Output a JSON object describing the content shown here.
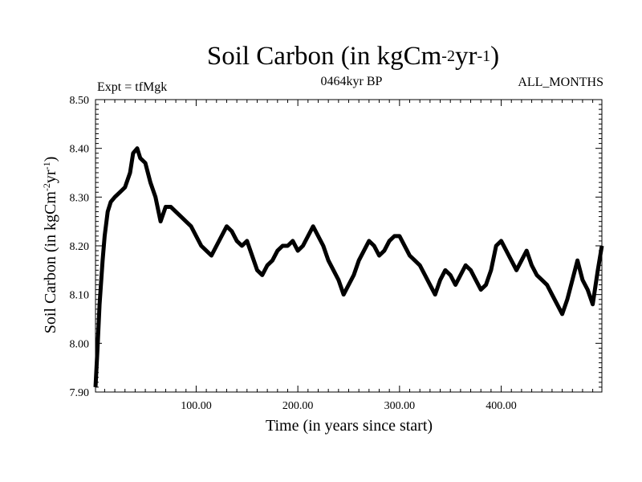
{
  "chart_data": {
    "type": "line",
    "title": "Soil Carbon (in kgCm",
    "title_sup1": "-2",
    "title_mid": "yr",
    "title_sup2": "-1",
    "title_end": ")",
    "subtitle_left": "Expt = tfMgk",
    "subtitle_center": "0464kyr BP",
    "subtitle_right": "ALL_MONTHS",
    "xlabel": "Time (in years since start)",
    "ylabel": "Soil Carbon (in kgCm",
    "ylabel_sup1": "-2",
    "ylabel_mid": "yr",
    "ylabel_sup2": "-1",
    "ylabel_end": ")",
    "xlim": [
      1,
      499
    ],
    "ylim": [
      7.9,
      8.5
    ],
    "xticks": [
      100,
      200,
      300,
      400
    ],
    "xtick_labels": [
      "100.00",
      "200.00",
      "300.00",
      "400.00"
    ],
    "yticks": [
      7.9,
      8.0,
      8.1,
      8.2,
      8.3,
      8.4,
      8.5
    ],
    "ytick_labels": [
      "7.90",
      "8.00",
      "8.10",
      "8.20",
      "8.30",
      "8.40",
      "8.50"
    ],
    "grid": false,
    "line_color": "#000000",
    "series": [
      {
        "x": [
          1,
          3,
          5,
          8,
          10,
          13,
          16,
          20,
          25,
          30,
          35,
          38,
          42,
          45,
          50,
          55,
          60,
          65,
          70,
          75,
          80,
          85,
          90,
          95,
          100,
          105,
          110,
          115,
          120,
          125,
          130,
          135,
          140,
          145,
          150,
          155,
          160,
          165,
          170,
          175,
          180,
          185,
          190,
          195,
          200,
          205,
          210,
          215,
          220,
          225,
          230,
          235,
          240,
          245,
          250,
          255,
          260,
          265,
          270,
          275,
          280,
          285,
          290,
          295,
          300,
          305,
          310,
          315,
          320,
          325,
          330,
          335,
          340,
          345,
          350,
          355,
          360,
          365,
          370,
          375,
          380,
          385,
          390,
          395,
          400,
          405,
          410,
          415,
          420,
          425,
          430,
          435,
          440,
          445,
          450,
          455,
          460,
          465,
          470,
          475,
          480,
          485,
          490,
          495,
          499
        ],
        "y": [
          7.91,
          7.99,
          8.08,
          8.17,
          8.22,
          8.27,
          8.29,
          8.3,
          8.31,
          8.32,
          8.35,
          8.39,
          8.4,
          8.38,
          8.37,
          8.33,
          8.3,
          8.25,
          8.28,
          8.28,
          8.27,
          8.26,
          8.25,
          8.24,
          8.22,
          8.2,
          8.19,
          8.18,
          8.2,
          8.22,
          8.24,
          8.23,
          8.21,
          8.2,
          8.21,
          8.18,
          8.15,
          8.14,
          8.16,
          8.17,
          8.19,
          8.2,
          8.2,
          8.21,
          8.19,
          8.2,
          8.22,
          8.24,
          8.22,
          8.2,
          8.17,
          8.15,
          8.13,
          8.1,
          8.12,
          8.14,
          8.17,
          8.19,
          8.21,
          8.2,
          8.18,
          8.19,
          8.21,
          8.22,
          8.22,
          8.2,
          8.18,
          8.17,
          8.16,
          8.14,
          8.12,
          8.1,
          8.13,
          8.15,
          8.14,
          8.12,
          8.14,
          8.16,
          8.15,
          8.13,
          8.11,
          8.12,
          8.15,
          8.2,
          8.21,
          8.19,
          8.17,
          8.15,
          8.17,
          8.19,
          8.16,
          8.14,
          8.13,
          8.12,
          8.1,
          8.08,
          8.06,
          8.09,
          8.13,
          8.17,
          8.13,
          8.11,
          8.08,
          8.15,
          8.2
        ]
      }
    ]
  }
}
